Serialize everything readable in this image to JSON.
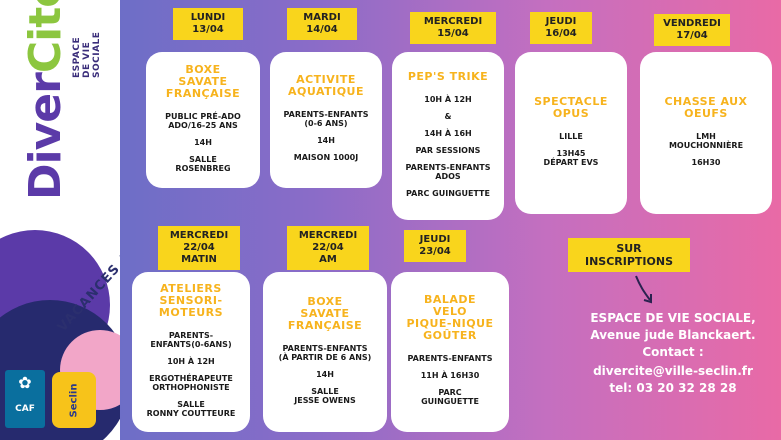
{
  "logo": {
    "diver": "Diver",
    "cite": "Cité",
    "evs_lines": [
      "ESPACE",
      "DE VIE",
      "SOCIALE"
    ]
  },
  "vacances_text": "VACANCES AVRIL",
  "caf_label": "CAF",
  "seclin_label": "Seclin",
  "days": [
    {
      "label": "LUNDI\n13/04",
      "title": "BOXE\nSAVATE\nFRANÇAISE",
      "lines": [
        "PUBLIC PRÉ-ADO\nADO/16-25 ANS",
        "14H",
        "SALLE\nROSENBREG"
      ]
    },
    {
      "label": "MARDI\n14/04",
      "title": "ACTIVITE\nAQUATIQUE",
      "lines": [
        "PARENTS-ENFANTS\n(0-6 ANS)",
        "14H",
        "MAISON 1000J"
      ]
    },
    {
      "label": "MERCREDI\n15/04",
      "title": "PEP'S TRIKE",
      "lines": [
        "10H À 12H",
        "&",
        "14H À 16H",
        "PAR SESSIONS",
        "PARENTS-ENFANTS\nADOS",
        "PARC GUINGUETTE"
      ]
    },
    {
      "label": "JEUDI\n16/04",
      "title": "SPECTACLE\nOPUS",
      "lines": [
        "LILLE",
        "13H45\nDÉPART EVS"
      ]
    },
    {
      "label": "VENDREDI\n17/04",
      "title": "CHASSE AUX\nOEUFS",
      "lines": [
        "LMH\nMOUCHONNIÈRE",
        "16H30"
      ]
    },
    {
      "label": "MERCREDI\n22/04\nMATIN",
      "title": "ATELIERS\nSENSORI-\nMOTEURS",
      "lines": [
        "PARENTS-\nENFANTS(0-6ANS)",
        "10H À 12H",
        "ERGOTHÉRAPEUTE\nORTHOPHONISTE",
        "SALLE\nRONNY COUTTEURE"
      ]
    },
    {
      "label": "MERCREDI\n22/04\nAM",
      "title": "BOXE\nSAVATE\nFRANÇAISE",
      "lines": [
        "PARENTS-ENFANTS\n(À PARTIR DE 6 ANS)",
        "14H",
        "SALLE\nJESSE OWENS"
      ]
    },
    {
      "label": "JEUDI\n23/04",
      "title": "BALADE\nVELO\nPIQUE-NIQUE\nGOÛTER",
      "lines": [
        "PARENTS-ENFANTS",
        "11H À 16H30",
        "PARC\nGUINGUETTE"
      ]
    }
  ],
  "inscriptions_label": "SUR\nINSCRIPTIONS",
  "contact": {
    "line1": "ESPACE DE VIE SOCIALE,",
    "line2": "Avenue jude Blanckaert.",
    "line3": "Contact :",
    "email": "divercite@ville-seclin.fr",
    "tel": "tel: 03 20 32 28 28"
  }
}
